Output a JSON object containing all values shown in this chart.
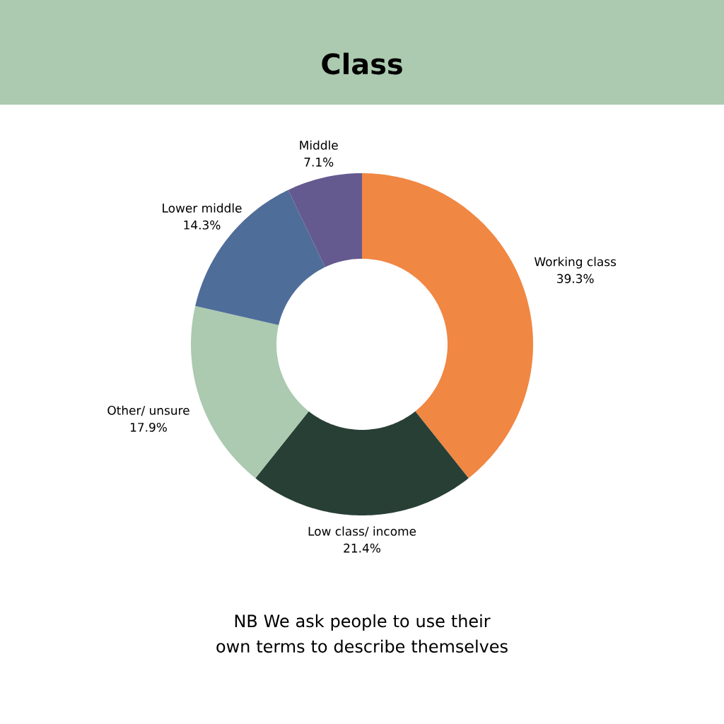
{
  "chart_data": {
    "type": "donut",
    "title": "Class",
    "categories": [
      "Working class",
      "Low class/ income",
      "Other/ unsure",
      "Lower middle",
      "Middle"
    ],
    "values": [
      39.3,
      21.4,
      17.9,
      14.3,
      7.1
    ],
    "colors": [
      "#f08743",
      "#283f36",
      "#abcab0",
      "#4f6d99",
      "#645a8f"
    ],
    "value_labels": [
      "39.3%",
      "21.4%",
      "17.9%",
      "14.3%",
      "7.1%"
    ],
    "annotations": [
      "NB We ask people to use their own terms to describe themselves"
    ]
  }
}
